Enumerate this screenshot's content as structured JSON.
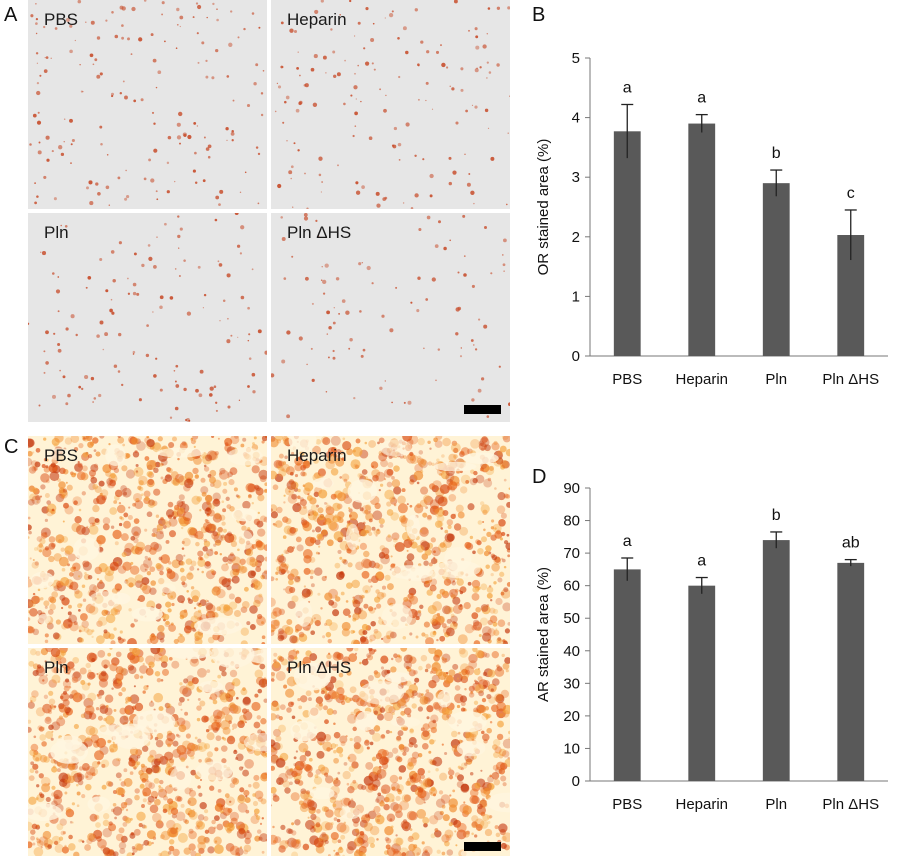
{
  "panels": {
    "A": {
      "letter": "A",
      "tiles": [
        "PBS",
        "Heparin",
        "Pln",
        "Pln ΔHS"
      ],
      "background": "#e6e6e6",
      "stain_color": "#c8502f"
    },
    "B": {
      "letter": "B"
    },
    "C": {
      "letter": "C",
      "tiles": [
        "PBS",
        "Heparin",
        "Pln",
        "Pln ΔHS"
      ],
      "background": "#fff3d6",
      "stain_color": "#e0531a"
    },
    "D": {
      "letter": "D"
    }
  },
  "chart_data": [
    {
      "panel": "B",
      "type": "bar",
      "categories": [
        "PBS",
        "Heparin",
        "Pln",
        "Pln ΔHS"
      ],
      "values": [
        3.77,
        3.9,
        2.9,
        2.03
      ],
      "errors": [
        0.45,
        0.15,
        0.22,
        0.42
      ],
      "significance": [
        "a",
        "a",
        "b",
        "c"
      ],
      "ylabel": "OR stained area (%)",
      "xlabel": "",
      "ylim": [
        0,
        5
      ],
      "yticks": [
        0,
        1,
        2,
        3,
        4,
        5
      ],
      "bar_color": "#595959",
      "grid": false
    },
    {
      "panel": "D",
      "type": "bar",
      "categories": [
        "PBS",
        "Heparin",
        "Pln",
        "Pln ΔHS"
      ],
      "values": [
        65,
        60,
        74,
        67
      ],
      "errors": [
        3.5,
        2.5,
        2.5,
        1
      ],
      "significance": [
        "a",
        "a",
        "b",
        "ab"
      ],
      "ylabel": "AR stained area (%)",
      "xlabel": "",
      "ylim": [
        0,
        90
      ],
      "yticks": [
        0,
        10,
        20,
        30,
        40,
        50,
        60,
        70,
        80,
        90
      ],
      "bar_color": "#595959",
      "grid": false
    }
  ]
}
